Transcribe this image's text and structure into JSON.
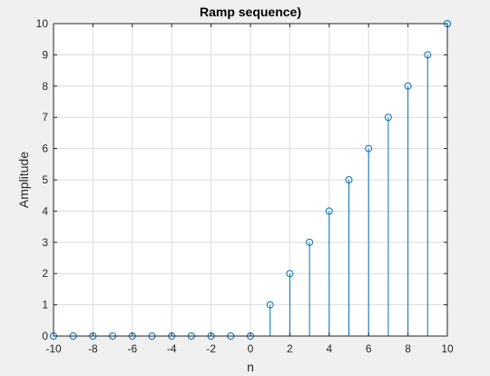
{
  "chart_data": {
    "type": "stem",
    "title": "Ramp sequence)",
    "xlabel": "n",
    "ylabel": "Amplitude",
    "xlim": [
      -10,
      10
    ],
    "ylim": [
      0,
      10
    ],
    "xticks": [
      -10,
      -8,
      -6,
      -4,
      -2,
      0,
      2,
      4,
      6,
      8,
      10
    ],
    "yticks": [
      0,
      1,
      2,
      3,
      4,
      5,
      6,
      7,
      8,
      9,
      10
    ],
    "grid": true,
    "x": [
      -10,
      -9,
      -8,
      -7,
      -6,
      -5,
      -4,
      -3,
      -2,
      -1,
      0,
      1,
      2,
      3,
      4,
      5,
      6,
      7,
      8,
      9,
      10
    ],
    "y": [
      0,
      0,
      0,
      0,
      0,
      0,
      0,
      0,
      0,
      0,
      0,
      1,
      2,
      3,
      4,
      5,
      6,
      7,
      8,
      9,
      10
    ],
    "colors": {
      "stem": "#0072bd",
      "grid": "#dcdcdc",
      "axes_bg": "#ffffff",
      "figure_bg": "#f0f0f0",
      "axis": "#262626"
    }
  }
}
